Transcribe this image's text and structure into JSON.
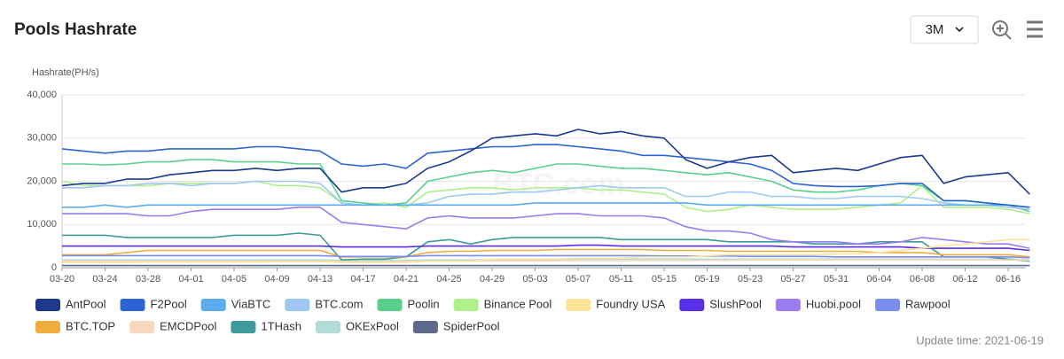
{
  "header": {
    "title": "Pools Hashrate",
    "range": "3M"
  },
  "chart_data": {
    "type": "line",
    "y_label": "Hashrate(PH/s)",
    "watermark": "BTC.com",
    "grid": true,
    "categories": [
      "03-20",
      null,
      "03-24",
      null,
      "03-28",
      null,
      "04-01",
      null,
      "04-05",
      null,
      "04-09",
      null,
      "04-13",
      null,
      "04-17",
      null,
      "04-21",
      null,
      "04-25",
      null,
      "04-29",
      null,
      "05-03",
      null,
      "05-07",
      null,
      "05-11",
      null,
      "05-15",
      null,
      "05-19",
      null,
      "05-23",
      null,
      "05-27",
      null,
      "05-31",
      null,
      "06-04",
      null,
      "06-08",
      null,
      "06-12",
      null,
      "06-16",
      null
    ],
    "ylim": [
      0,
      40000
    ],
    "yticks": [
      0,
      {
        "value": 10000,
        "label": "10,000"
      },
      {
        "value": 20000,
        "label": "20,000"
      },
      {
        "value": 30000,
        "label": "30,000"
      },
      {
        "value": 40000,
        "label": "40,000"
      }
    ],
    "series": [
      {
        "name": "AntPool",
        "color": "#1b3a8c",
        "values": [
          19000,
          19500,
          19500,
          20500,
          20500,
          21500,
          22000,
          22500,
          22500,
          23000,
          22500,
          23000,
          23000,
          17500,
          18500,
          18500,
          19500,
          23000,
          24500,
          27000,
          30000,
          30500,
          31000,
          30500,
          32000,
          31000,
          31500,
          30500,
          30000,
          25000,
          23000,
          24500,
          25500,
          26000,
          22000,
          22500,
          23000,
          22500,
          24000,
          25500,
          26000,
          19500,
          21000,
          21500,
          22000,
          17000
        ]
      },
      {
        "name": "F2Pool",
        "color": "#2d63d2",
        "values": [
          27500,
          27000,
          26500,
          27000,
          27000,
          27500,
          27500,
          27500,
          27500,
          28000,
          28000,
          27500,
          27000,
          24000,
          23500,
          24000,
          23000,
          26500,
          27000,
          27500,
          28000,
          28000,
          28500,
          28500,
          28000,
          27500,
          27000,
          26000,
          26000,
          25500,
          25000,
          24500,
          24000,
          22500,
          19500,
          19000,
          18800,
          18800,
          19000,
          19500,
          19500,
          15500,
          15500,
          15000,
          14500,
          14000
        ]
      },
      {
        "name": "ViaBTC",
        "color": "#5aabf0",
        "values": [
          14000,
          14000,
          14500,
          14000,
          14500,
          14500,
          14500,
          14500,
          14500,
          14500,
          14500,
          14500,
          14500,
          14500,
          14500,
          14500,
          14500,
          14500,
          14500,
          14500,
          14500,
          14500,
          15000,
          15000,
          15000,
          15000,
          15000,
          15000,
          15000,
          15000,
          14500,
          14500,
          14500,
          14500,
          14500,
          14500,
          14500,
          14500,
          14500,
          14500,
          14500,
          14500,
          14500,
          14500,
          14500,
          14000
        ]
      },
      {
        "name": "BTC.com",
        "color": "#9fc8f5",
        "values": [
          18500,
          18500,
          19000,
          19000,
          19500,
          19500,
          19000,
          19500,
          19500,
          20000,
          20000,
          20000,
          19500,
          15000,
          14500,
          14500,
          14500,
          15000,
          16500,
          17000,
          17000,
          17500,
          17500,
          18000,
          18500,
          19000,
          18500,
          18500,
          18500,
          16500,
          16500,
          17500,
          17500,
          16500,
          16500,
          16000,
          16000,
          16500,
          16500,
          16500,
          16000,
          15000,
          14500,
          14500,
          14000,
          13500
        ]
      },
      {
        "name": "Poolin",
        "color": "#5ad08e",
        "values": [
          24000,
          24000,
          23800,
          24000,
          24500,
          24500,
          25000,
          25000,
          24500,
          24500,
          24500,
          24000,
          24000,
          15500,
          15000,
          14500,
          15000,
          20000,
          21000,
          22000,
          22500,
          22000,
          23000,
          24000,
          24000,
          23500,
          23000,
          23000,
          22500,
          22000,
          21500,
          22000,
          21000,
          20000,
          18000,
          17500,
          17500,
          18000,
          19000,
          19500,
          19000,
          15500,
          15500,
          15000,
          14500,
          13000
        ]
      },
      {
        "name": "Binance Pool",
        "color": "#b0f08a",
        "values": [
          20000,
          19000,
          19000,
          19000,
          19000,
          19500,
          19500,
          19500,
          19500,
          20000,
          19000,
          19000,
          18500,
          15000,
          14500,
          15000,
          14000,
          17500,
          18000,
          18500,
          18500,
          18000,
          18500,
          18500,
          18500,
          18000,
          18000,
          17500,
          17000,
          14000,
          13000,
          13500,
          14500,
          14000,
          13500,
          13500,
          13500,
          14000,
          14500,
          15000,
          19000,
          14000,
          14000,
          14000,
          13500,
          12500
        ]
      },
      {
        "name": "Foundry USA",
        "color": "#fbe49a",
        "values": [
          1200,
          1200,
          1200,
          1200,
          1300,
          1300,
          1300,
          1300,
          1300,
          1300,
          1400,
          1400,
          1400,
          1200,
          1200,
          1200,
          1200,
          1500,
          1500,
          1500,
          2000,
          2000,
          2000,
          2000,
          2200,
          2200,
          2200,
          2500,
          2500,
          2500,
          2800,
          3000,
          3000,
          3000,
          3000,
          3000,
          3200,
          3200,
          3500,
          4000,
          4500,
          5000,
          5500,
          6000,
          6500,
          6500
        ]
      },
      {
        "name": "SlushPool",
        "color": "#5a2de8",
        "values": [
          5000,
          5000,
          5000,
          5000,
          5000,
          5000,
          5000,
          5000,
          5000,
          5000,
          5000,
          5000,
          5000,
          4800,
          4800,
          4800,
          4800,
          5000,
          5000,
          5000,
          5000,
          5000,
          5000,
          5000,
          5200,
          5200,
          5000,
          5000,
          5000,
          5000,
          5000,
          5000,
          5000,
          5000,
          4800,
          4800,
          4800,
          4800,
          4800,
          4800,
          4500,
          4500,
          4500,
          4500,
          4500,
          4000
        ]
      },
      {
        "name": "Huobi.pool",
        "color": "#9a7cf0",
        "values": [
          12500,
          12500,
          12500,
          12500,
          12000,
          12000,
          13000,
          13500,
          13500,
          13500,
          13500,
          14000,
          14000,
          10500,
          10000,
          9500,
          9000,
          11500,
          12000,
          11500,
          11500,
          11500,
          12000,
          12500,
          12500,
          12000,
          12000,
          12000,
          11500,
          9500,
          8500,
          8500,
          8000,
          6500,
          6000,
          6000,
          6000,
          5500,
          5500,
          6000,
          7000,
          6500,
          6000,
          5500,
          5500,
          4500
        ]
      },
      {
        "name": "Rawpool",
        "color": "#7b8cf2",
        "values": [
          2800,
          2800,
          2800,
          2800,
          2800,
          2800,
          2800,
          2800,
          2800,
          2800,
          2800,
          2800,
          2800,
          2600,
          2600,
          2600,
          2600,
          2800,
          2800,
          2800,
          2800,
          2800,
          2800,
          2800,
          2800,
          2800,
          2800,
          2800,
          2700,
          2700,
          2700,
          2700,
          2600,
          2600,
          2600,
          2600,
          2500,
          2500,
          2500,
          2500,
          2500,
          2500,
          2500,
          2500,
          2500,
          2300
        ]
      },
      {
        "name": "BTC.TOP",
        "color": "#f0ac3c",
        "values": [
          3000,
          3000,
          3000,
          3500,
          4000,
          4000,
          4000,
          4000,
          4000,
          4000,
          4000,
          4000,
          4000,
          2500,
          2500,
          2500,
          2500,
          3500,
          3800,
          3800,
          4000,
          4000,
          4000,
          4200,
          4200,
          4200,
          4200,
          4200,
          4000,
          4000,
          4000,
          3800,
          3800,
          3800,
          3800,
          3800,
          3800,
          3800,
          3500,
          3500,
          3500,
          3000,
          3000,
          3000,
          3000,
          2500
        ]
      },
      {
        "name": "EMCDPool",
        "color": "#f8d8bc",
        "values": [
          1500,
          1500,
          1500,
          1500,
          1500,
          1500,
          1500,
          1500,
          1500,
          1500,
          1500,
          1500,
          1500,
          1400,
          1400,
          1400,
          1400,
          1500,
          1500,
          1500,
          1600,
          1600,
          1600,
          1600,
          1600,
          1600,
          1600,
          1700,
          1700,
          1700,
          1700,
          1700,
          1800,
          1800,
          1800,
          1800,
          1800,
          1800,
          1800,
          1800,
          1800,
          1800,
          1800,
          1800,
          1800,
          1700
        ]
      },
      {
        "name": "1THash",
        "color": "#3f9a9c",
        "values": [
          7500,
          7500,
          7500,
          7000,
          7000,
          7000,
          7000,
          7000,
          7500,
          7500,
          7500,
          8000,
          7500,
          1800,
          2000,
          2000,
          2500,
          6000,
          6500,
          5500,
          6500,
          7000,
          7000,
          7000,
          7000,
          7000,
          6500,
          6500,
          6500,
          6500,
          6500,
          6000,
          6000,
          6000,
          6000,
          5500,
          5500,
          5500,
          6000,
          6000,
          6000,
          2500,
          2500,
          2500,
          2000,
          1500
        ]
      },
      {
        "name": "OKExPool",
        "color": "#b3dcd9",
        "values": [
          1800,
          1800,
          1800,
          1800,
          1800,
          1800,
          1800,
          1800,
          1800,
          1800,
          1800,
          1800,
          1800,
          1700,
          1700,
          1700,
          1700,
          1800,
          1800,
          1800,
          1900,
          1900,
          1900,
          1900,
          2000,
          2000,
          2000,
          2000,
          2000,
          2000,
          2000,
          2000,
          2000,
          2000,
          2000,
          2000,
          2000,
          2000,
          2000,
          2000,
          2000,
          2000,
          2000,
          2000,
          2000,
          1800
        ]
      },
      {
        "name": "SpiderPool",
        "color": "#5c6b8c",
        "values": [
          500,
          500,
          500,
          500,
          500,
          500,
          500,
          500,
          500,
          500,
          500,
          500,
          500,
          500,
          500,
          500,
          500,
          500,
          500,
          500,
          500,
          500,
          500,
          500,
          500,
          500,
          500,
          500,
          500,
          500,
          500,
          500,
          500,
          500,
          500,
          500,
          500,
          500,
          500,
          500,
          500,
          500,
          500,
          500,
          500,
          500
        ]
      }
    ]
  },
  "footer": {
    "update": "Update time: 2021-06-19"
  }
}
